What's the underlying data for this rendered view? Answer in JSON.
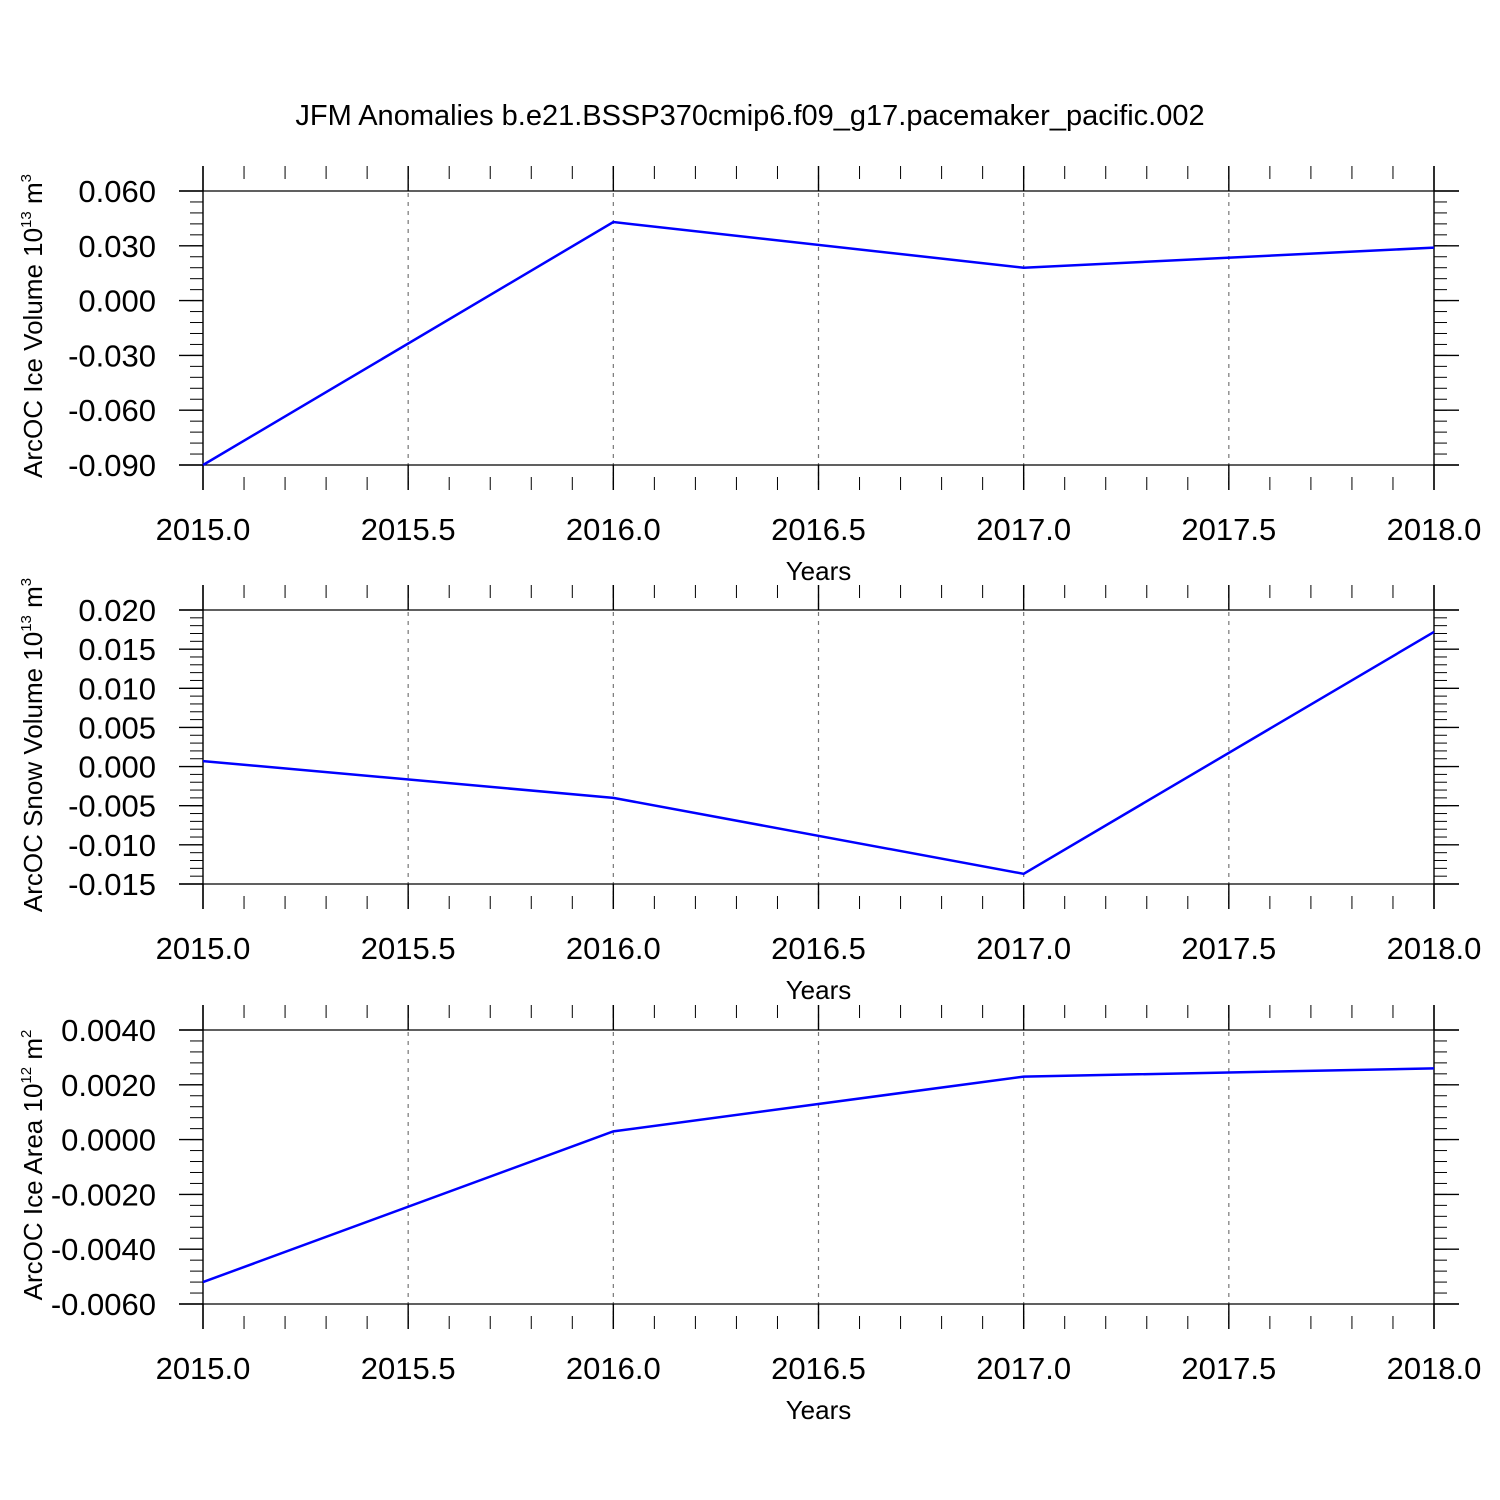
{
  "title": "JFM Anomalies b.e21.BSSP370cmip6.f09_g17.pacemaker_pacific.002",
  "chart_data": [
    {
      "type": "line",
      "x": [
        2015,
        2016,
        2017,
        2018
      ],
      "series": [
        {
          "values": [
            -0.09,
            0.043,
            0.018,
            0.029
          ],
          "color": "#0000ff"
        }
      ],
      "xlabel": "Years",
      "ylabel": {
        "main": "ArcOC Ice Volume 10",
        "sup1": "13",
        "mid": " m",
        "sup2": "3"
      },
      "xlim": [
        2015,
        2018
      ],
      "ylim": [
        -0.09,
        0.06
      ],
      "xticks": [
        2015.0,
        2015.5,
        2016.0,
        2016.5,
        2017.0,
        2017.5,
        2018.0
      ],
      "xtick_labels": [
        "2015.0",
        "2015.5",
        "2016.0",
        "2016.5",
        "2017.0",
        "2017.5",
        "2018.0"
      ],
      "yticks": [
        -0.09,
        -0.06,
        -0.03,
        0.0,
        0.03,
        0.06
      ],
      "ytick_labels": [
        "-0.090",
        "-0.060",
        "-0.030",
        "0.000",
        "0.030",
        "0.060"
      ],
      "grid": "vertical dashed at major x ticks"
    },
    {
      "type": "line",
      "x": [
        2015,
        2016,
        2017,
        2018
      ],
      "series": [
        {
          "values": [
            0.0007,
            -0.004,
            -0.0137,
            0.0172
          ],
          "color": "#0000ff"
        }
      ],
      "xlabel": "Years",
      "ylabel": {
        "main": "ArcOC Snow Volume 10",
        "sup1": "13",
        "mid": " m",
        "sup2": "3"
      },
      "xlim": [
        2015,
        2018
      ],
      "ylim": [
        -0.015,
        0.02
      ],
      "xticks": [
        2015.0,
        2015.5,
        2016.0,
        2016.5,
        2017.0,
        2017.5,
        2018.0
      ],
      "xtick_labels": [
        "2015.0",
        "2015.5",
        "2016.0",
        "2016.5",
        "2017.0",
        "2017.5",
        "2018.0"
      ],
      "yticks": [
        -0.015,
        -0.01,
        -0.005,
        0.0,
        0.005,
        0.01,
        0.015,
        0.02
      ],
      "ytick_labels": [
        "-0.015",
        "-0.010",
        "-0.005",
        "0.000",
        "0.005",
        "0.010",
        "0.015",
        "0.020"
      ],
      "grid": "vertical dashed at major x ticks"
    },
    {
      "type": "line",
      "x": [
        2015,
        2016,
        2017,
        2018
      ],
      "series": [
        {
          "values": [
            -0.0052,
            0.0003,
            0.0023,
            0.0026
          ],
          "color": "#0000ff"
        }
      ],
      "xlabel": "Years",
      "ylabel": {
        "main": "ArcOC Ice Area 10",
        "sup1": "12",
        "mid": " m",
        "sup2": "2"
      },
      "xlim": [
        2015,
        2018
      ],
      "ylim": [
        -0.006,
        0.004
      ],
      "xticks": [
        2015.0,
        2015.5,
        2016.0,
        2016.5,
        2017.0,
        2017.5,
        2018.0
      ],
      "xtick_labels": [
        "2015.0",
        "2015.5",
        "2016.0",
        "2016.5",
        "2017.0",
        "2017.5",
        "2018.0"
      ],
      "yticks": [
        -0.006,
        -0.004,
        -0.002,
        0.0,
        0.002,
        0.004
      ],
      "ytick_labels": [
        "-0.0060",
        "-0.0040",
        "-0.0020",
        "0.0000",
        "0.0020",
        "0.0040"
      ],
      "grid": "vertical dashed at major x ticks"
    }
  ]
}
